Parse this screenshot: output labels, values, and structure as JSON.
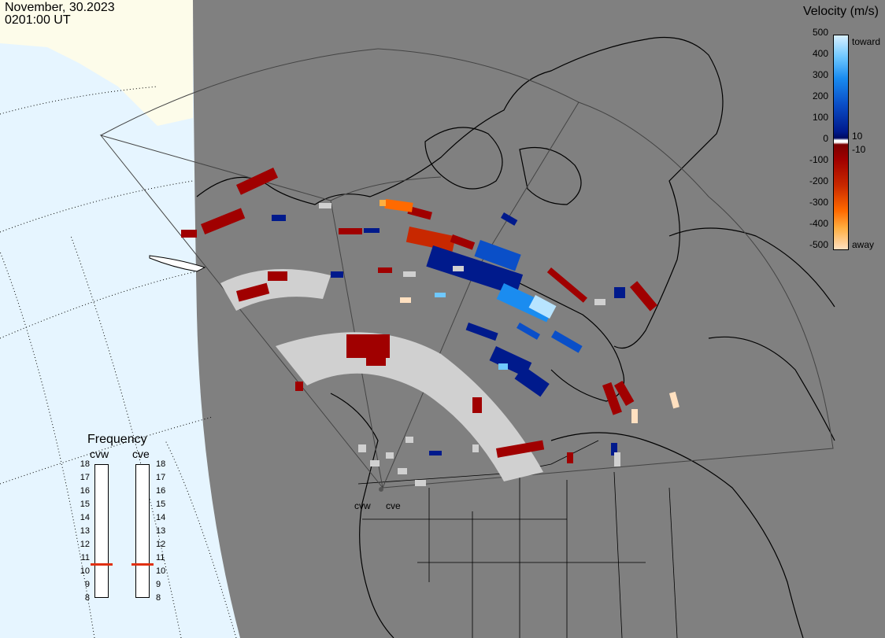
{
  "header": {
    "date": "November, 30.2023",
    "time": "0201:00 UT"
  },
  "velocity_scale": {
    "title": "Velocity (m/s)",
    "ticks": [
      "500",
      "400",
      "300",
      "200",
      "100",
      "0",
      "-100",
      "-200",
      "-300",
      "-400",
      "-500"
    ],
    "side_labels": [
      "toward",
      "10",
      "-10",
      "away"
    ],
    "colors": {
      "toward_max": "#d8f0ff",
      "toward_mid": "#1a8cf0",
      "toward_low": "#001a8c",
      "away_low": "#a00000",
      "away_mid": "#ff6a00",
      "away_max": "#ffe0c0",
      "ground_scatter": "#d0d0d0"
    }
  },
  "frequency_panel": {
    "title": "Frequency",
    "radars": [
      {
        "name": "cvw",
        "frequency_mhz": 11
      },
      {
        "name": "cve",
        "frequency_mhz": 11
      }
    ],
    "scale": [
      "18",
      "17",
      "16",
      "15",
      "14",
      "13",
      "12",
      "11",
      "10",
      "9",
      "8"
    ]
  },
  "sites": {
    "cvw_label": "cvw",
    "cve_label": "cve"
  },
  "colors": {
    "map_background": "#808080",
    "ocean": "#e6f5ff",
    "land_outside": "#fdfcea",
    "marker": "#e03010"
  }
}
